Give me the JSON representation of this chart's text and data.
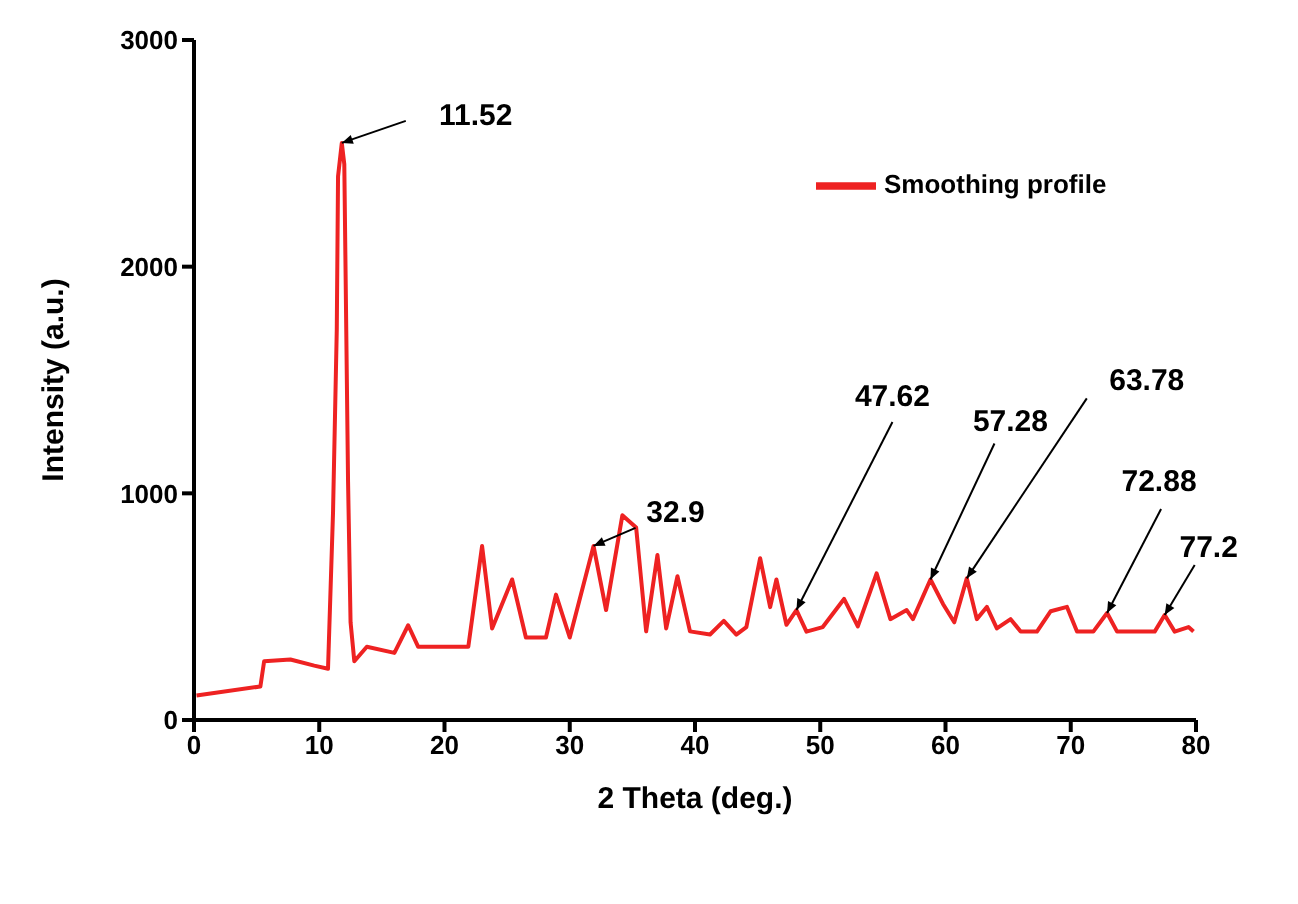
{
  "chart_data": {
    "type": "line",
    "xlabel": "2 Theta (deg.)",
    "ylabel": "Intensity (a.u.)",
    "xlim": [
      0,
      80
    ],
    "ylim": [
      0,
      3000
    ],
    "xticks": [
      0,
      10,
      20,
      30,
      40,
      50,
      60,
      70,
      80
    ],
    "yticks": [
      0,
      1000,
      2000,
      3000
    ],
    "grid": false,
    "legend": "top right",
    "marker": "none",
    "line_style": "solid",
    "series": [
      {
        "name": "Smoothing profile",
        "color": "#ee2222",
        "x": [
          0.2,
          5.3,
          5.6,
          7.7,
          9.6,
          10.7,
          11.1,
          11.4,
          11.5,
          11.8,
          12.0,
          12.3,
          12.5,
          12.8,
          13.8,
          16.0,
          17.1,
          17.9,
          21.9,
          23.0,
          23.8,
          25.4,
          26.5,
          28.1,
          28.9,
          30.0,
          31.9,
          32.9,
          34.2,
          35.3,
          36.1,
          37.0,
          37.7,
          38.6,
          39.6,
          41.2,
          42.3,
          43.3,
          44.1,
          45.2,
          46.0,
          46.5,
          47.3,
          48.1,
          48.9,
          50.2,
          51.9,
          53.0,
          54.5,
          55.6,
          56.9,
          57.4,
          58.8,
          59.8,
          60.7,
          61.7,
          62.5,
          63.3,
          64.1,
          65.2,
          66.0,
          67.3,
          68.4,
          69.7,
          70.5,
          71.8,
          72.9,
          73.7,
          76.7,
          77.5,
          78.3,
          79.4,
          79.8
        ],
        "values": [
          108,
          148,
          259,
          267,
          240,
          226,
          916,
          1724,
          2398,
          2546,
          2452,
          1051,
          431,
          259,
          323,
          296,
          418,
          323,
          323,
          768,
          404,
          620,
          364,
          364,
          553,
          364,
          768,
          485,
          903,
          849,
          391,
          728,
          404,
          634,
          391,
          377,
          437,
          377,
          410,
          714,
          498,
          620,
          420,
          485,
          390,
          410,
          534,
          413,
          647,
          445,
          485,
          445,
          620,
          512,
          431,
          625,
          445,
          499,
          404,
          445,
          390,
          390,
          480,
          499,
          390,
          390,
          472,
          390,
          390,
          463,
          390,
          410,
          390
        ]
      }
    ],
    "annotations": [
      {
        "text": "11.52",
        "x": 11.8,
        "y": 2546
      },
      {
        "text": "32.9",
        "x": 31.9,
        "y": 768
      },
      {
        "text": "47.62",
        "x": 48.1,
        "y": 485
      },
      {
        "text": "57.28",
        "x": 58.8,
        "y": 620
      },
      {
        "text": "63.78",
        "x": 61.7,
        "y": 625
      },
      {
        "text": "72.88",
        "x": 72.9,
        "y": 472
      },
      {
        "text": "77.2",
        "x": 77.5,
        "y": 463
      }
    ]
  }
}
